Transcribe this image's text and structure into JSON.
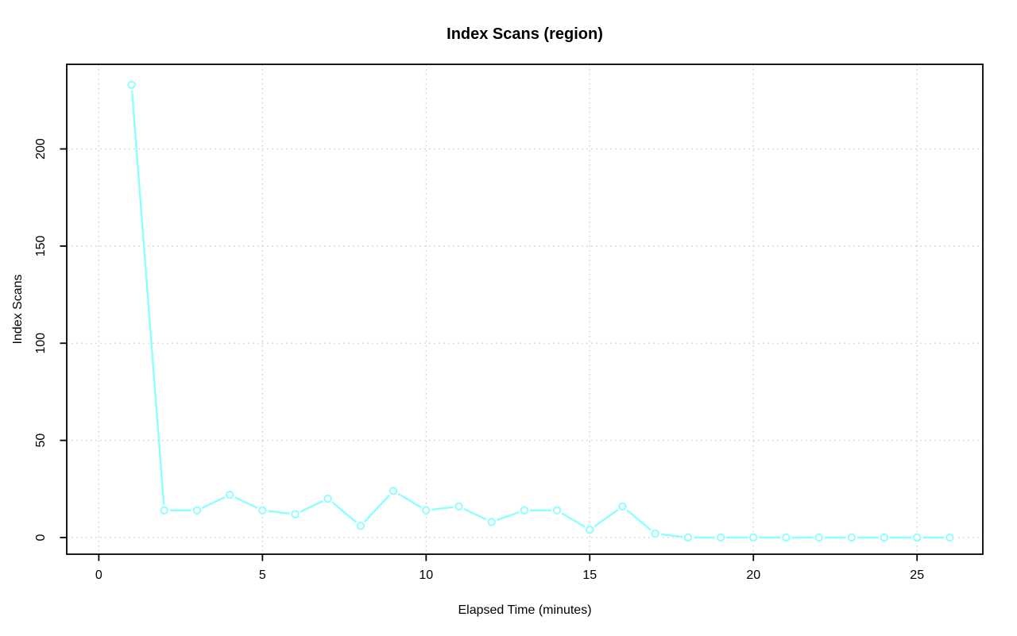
{
  "figure": {
    "background": "#ffffff"
  },
  "chart_data": {
    "type": "line",
    "title": "Index Scans (region)",
    "xlabel": "Elapsed Time (minutes)",
    "ylabel": "Index Scans",
    "x": [
      1,
      2,
      3,
      4,
      5,
      6,
      7,
      8,
      9,
      10,
      11,
      12,
      13,
      14,
      15,
      16,
      17,
      18,
      19,
      20,
      21,
      22,
      23,
      24,
      25,
      26
    ],
    "y": [
      233,
      14,
      14,
      22,
      14,
      12,
      20,
      6,
      24,
      14,
      16,
      8,
      14,
      14,
      4,
      16,
      2,
      0,
      0,
      0,
      0,
      0,
      0,
      0,
      0,
      0
    ],
    "x_ticks": [
      0,
      5,
      10,
      15,
      20,
      25
    ],
    "y_ticks": [
      0,
      50,
      100,
      150,
      200
    ],
    "xlim": [
      -0.98,
      27.01
    ],
    "ylim": [
      -8.58,
      243.54
    ],
    "grid": "dotted",
    "legend_position": "none",
    "marker": "open-circle",
    "line_type": "points-and-segments",
    "colors": {
      "series": "#8DFFFF",
      "marker_fill": "#FFFFFF",
      "grid": "#CDCDCD",
      "axis": "#000000",
      "text": "#000000"
    }
  }
}
